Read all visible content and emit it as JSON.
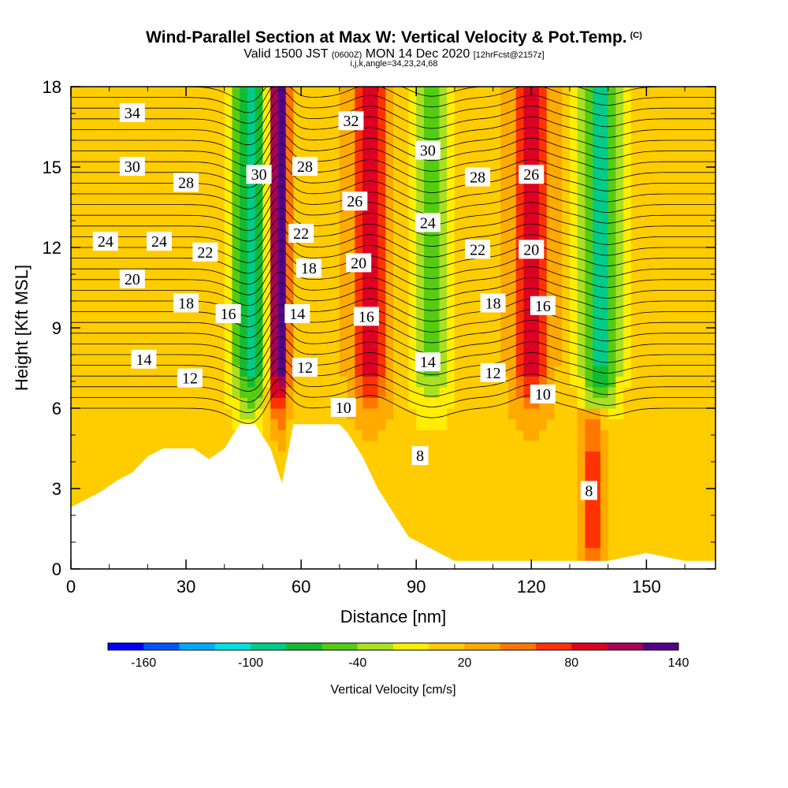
{
  "header": {
    "title": "Wind-Parallel Section at Max W: Vertical Velocity & Pot.Temp.",
    "title_mark": "(C)",
    "valid_prefix": "Valid 1500 JST",
    "valid_zulu": "(0600Z)",
    "valid_date": "MON 14 Dec 2020",
    "forecast": "[12hrFcst@2157z]",
    "ijk": "i,j,k,angle=34,23,24,68"
  },
  "colorbar": {
    "colors": [
      "#0000ff",
      "#0055ff",
      "#00aaff",
      "#00e0e0",
      "#00cc88",
      "#11bb33",
      "#55cc11",
      "#aae020",
      "#ffee00",
      "#ffcc00",
      "#ffaa00",
      "#ff7700",
      "#ff3300",
      "#dd0022",
      "#aa0055",
      "#550088"
    ],
    "tick_labels": [
      "-160",
      "-100",
      "-40",
      "20",
      "80",
      "140"
    ],
    "label": "Vertical Velocity [cm/s]"
  },
  "chart_data": {
    "type": "heatmap",
    "title": "Wind-Parallel Section at Max W: Vertical Velocity & Pot.Temp.",
    "xlabel": "Distance [nm]",
    "ylabel": "Height [Kft MSL]",
    "xlim": [
      0,
      168
    ],
    "ylim": [
      0,
      18
    ],
    "x_ticks": [
      "0",
      "30",
      "60",
      "90",
      "120",
      "150"
    ],
    "y_ticks": [
      "0",
      "3",
      "6",
      "9",
      "12",
      "15",
      "18"
    ],
    "vertical_velocity_features": [
      {
        "x": 54,
        "w_max": 150,
        "note": "strong updraft core"
      },
      {
        "x": 47,
        "w_min": -100,
        "note": "downdraft"
      },
      {
        "x": 78,
        "w_max": 80,
        "note": "updraft"
      },
      {
        "x": 94,
        "w_min": -60,
        "note": "downdraft"
      },
      {
        "x": 120,
        "w_max": 80,
        "note": "updraft"
      },
      {
        "x": 138,
        "w_min": -100,
        "note": "downdraft"
      },
      {
        "x": 136,
        "w_max": 60,
        "note": "low-level updraft"
      }
    ],
    "terrain_profile": {
      "x": [
        0,
        4,
        8,
        12,
        16,
        20,
        24,
        28,
        32,
        36,
        40,
        44,
        48,
        52,
        55,
        58,
        62,
        66,
        70,
        72,
        76,
        80,
        84,
        88,
        92,
        96,
        100,
        110,
        120,
        130,
        134,
        140,
        150,
        160,
        168
      ],
      "height_kft": [
        2.3,
        2.6,
        2.9,
        3.3,
        3.6,
        4.2,
        4.5,
        4.5,
        4.5,
        4.1,
        4.5,
        5.4,
        5.4,
        4.5,
        3.2,
        5.4,
        5.4,
        5.4,
        5.4,
        5.1,
        4.2,
        3.0,
        2.1,
        1.2,
        0.9,
        0.6,
        0.3,
        0.3,
        0.3,
        0.3,
        0.3,
        0.3,
        0.6,
        0.3,
        0.3
      ]
    },
    "pot_temp_contour_labels": [
      {
        "text": "34",
        "x": 16,
        "y": 17.0
      },
      {
        "text": "30",
        "x": 16,
        "y": 15.0
      },
      {
        "text": "28",
        "x": 30,
        "y": 14.4
      },
      {
        "text": "24",
        "x": 9,
        "y": 12.2
      },
      {
        "text": "24",
        "x": 23,
        "y": 12.2
      },
      {
        "text": "20",
        "x": 16,
        "y": 10.8
      },
      {
        "text": "22",
        "x": 35,
        "y": 11.8
      },
      {
        "text": "18",
        "x": 30,
        "y": 9.9
      },
      {
        "text": "16",
        "x": 41,
        "y": 9.5
      },
      {
        "text": "14",
        "x": 19,
        "y": 7.8
      },
      {
        "text": "12",
        "x": 31,
        "y": 7.1
      },
      {
        "text": "30",
        "x": 49,
        "y": 14.7
      },
      {
        "text": "28",
        "x": 61,
        "y": 15.0
      },
      {
        "text": "22",
        "x": 60,
        "y": 12.5
      },
      {
        "text": "18",
        "x": 62,
        "y": 11.2
      },
      {
        "text": "14",
        "x": 59,
        "y": 9.5
      },
      {
        "text": "12",
        "x": 61,
        "y": 7.5
      },
      {
        "text": "10",
        "x": 71,
        "y": 6.0
      },
      {
        "text": "32",
        "x": 73,
        "y": 16.7
      },
      {
        "text": "26",
        "x": 74,
        "y": 13.7
      },
      {
        "text": "20",
        "x": 75,
        "y": 11.4
      },
      {
        "text": "16",
        "x": 77,
        "y": 9.4
      },
      {
        "text": "30",
        "x": 93,
        "y": 15.6
      },
      {
        "text": "24",
        "x": 93,
        "y": 12.9
      },
      {
        "text": "14",
        "x": 93,
        "y": 7.7
      },
      {
        "text": "8",
        "x": 91,
        "y": 4.2
      },
      {
        "text": "28",
        "x": 106,
        "y": 14.6
      },
      {
        "text": "22",
        "x": 106,
        "y": 11.9
      },
      {
        "text": "18",
        "x": 110,
        "y": 9.9
      },
      {
        "text": "12",
        "x": 110,
        "y": 7.3
      },
      {
        "text": "26",
        "x": 120,
        "y": 14.7
      },
      {
        "text": "20",
        "x": 120,
        "y": 11.9
      },
      {
        "text": "16",
        "x": 123,
        "y": 9.8
      },
      {
        "text": "10",
        "x": 123,
        "y": 6.5
      },
      {
        "text": "8",
        "x": 135,
        "y": 2.9
      }
    ]
  }
}
